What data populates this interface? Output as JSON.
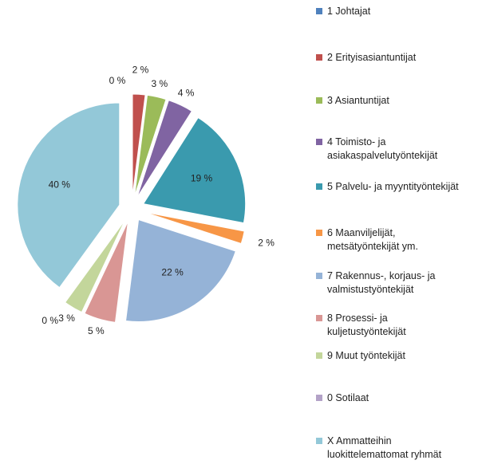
{
  "chart_data": {
    "type": "pie",
    "categories": [
      "1 Johtajat",
      "2 Erityisasiantuntijat",
      "3 Asiantuntijat",
      "4 Toimisto- ja asiakaspalvelutyöntekijät",
      "5 Palvelu- ja myyntityöntekijät",
      "6 Maanviljelijät, metsätyöntekijät ym.",
      "7 Rakennus-, korjaus- ja valmistustyöntekijät",
      "8 Prosessi- ja kuljetustyöntekijät",
      "9 Muut työntekijät",
      "0 Sotilaat",
      "X Ammatteihin luokittelemattomat ryhmät"
    ],
    "values": [
      0,
      2,
      3,
      4,
      19,
      2,
      22,
      5,
      3,
      0,
      40
    ],
    "value_labels": [
      "0 %",
      "2 %",
      "3 %",
      "4 %",
      "19 %",
      "2 %",
      "22 %",
      "5 %",
      "3 %",
      "0 %",
      "40 %"
    ],
    "colors": [
      "#4f81bd",
      "#c0504d",
      "#9bbb59",
      "#8064a2",
      "#3a9aae",
      "#f79646",
      "#95b3d7",
      "#d99694",
      "#c3d69b",
      "#b3a2c7",
      "#93c8d8"
    ],
    "legend": "right"
  }
}
